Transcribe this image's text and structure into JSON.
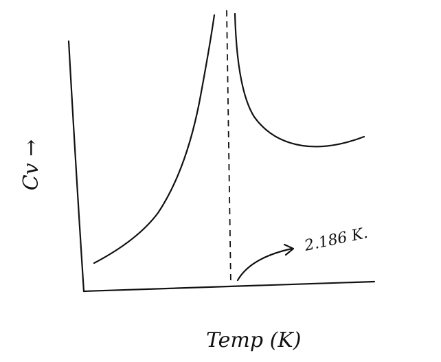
{
  "diagram": {
    "y_label": "Cv →",
    "x_label": "Temp (K)",
    "annotation": "2.186 K."
  }
}
